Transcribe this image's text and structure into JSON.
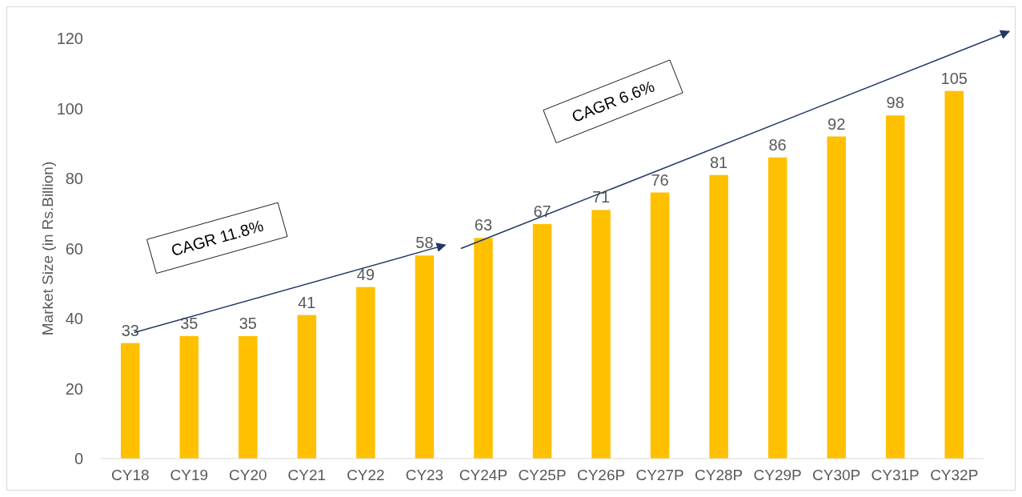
{
  "chart_data": {
    "type": "bar",
    "ylabel": "Market Size (in Rs.Billion)",
    "categories": [
      "CY18",
      "CY19",
      "CY20",
      "CY21",
      "CY22",
      "CY23",
      "CY24P",
      "CY25P",
      "CY26P",
      "CY27P",
      "CY28P",
      "CY29P",
      "CY30P",
      "CY31P",
      "CY32P"
    ],
    "values": [
      33,
      35,
      35,
      41,
      49,
      58,
      63,
      67,
      71,
      76,
      81,
      86,
      92,
      98,
      105
    ],
    "color": "#ffc000",
    "ylim": [
      0,
      120
    ],
    "yticks": [
      0,
      20,
      40,
      60,
      80,
      100,
      120
    ],
    "grid": false,
    "data_labels": true,
    "annotations": [
      "CAGR 11.8%",
      "CAGR 6.6%"
    ]
  }
}
